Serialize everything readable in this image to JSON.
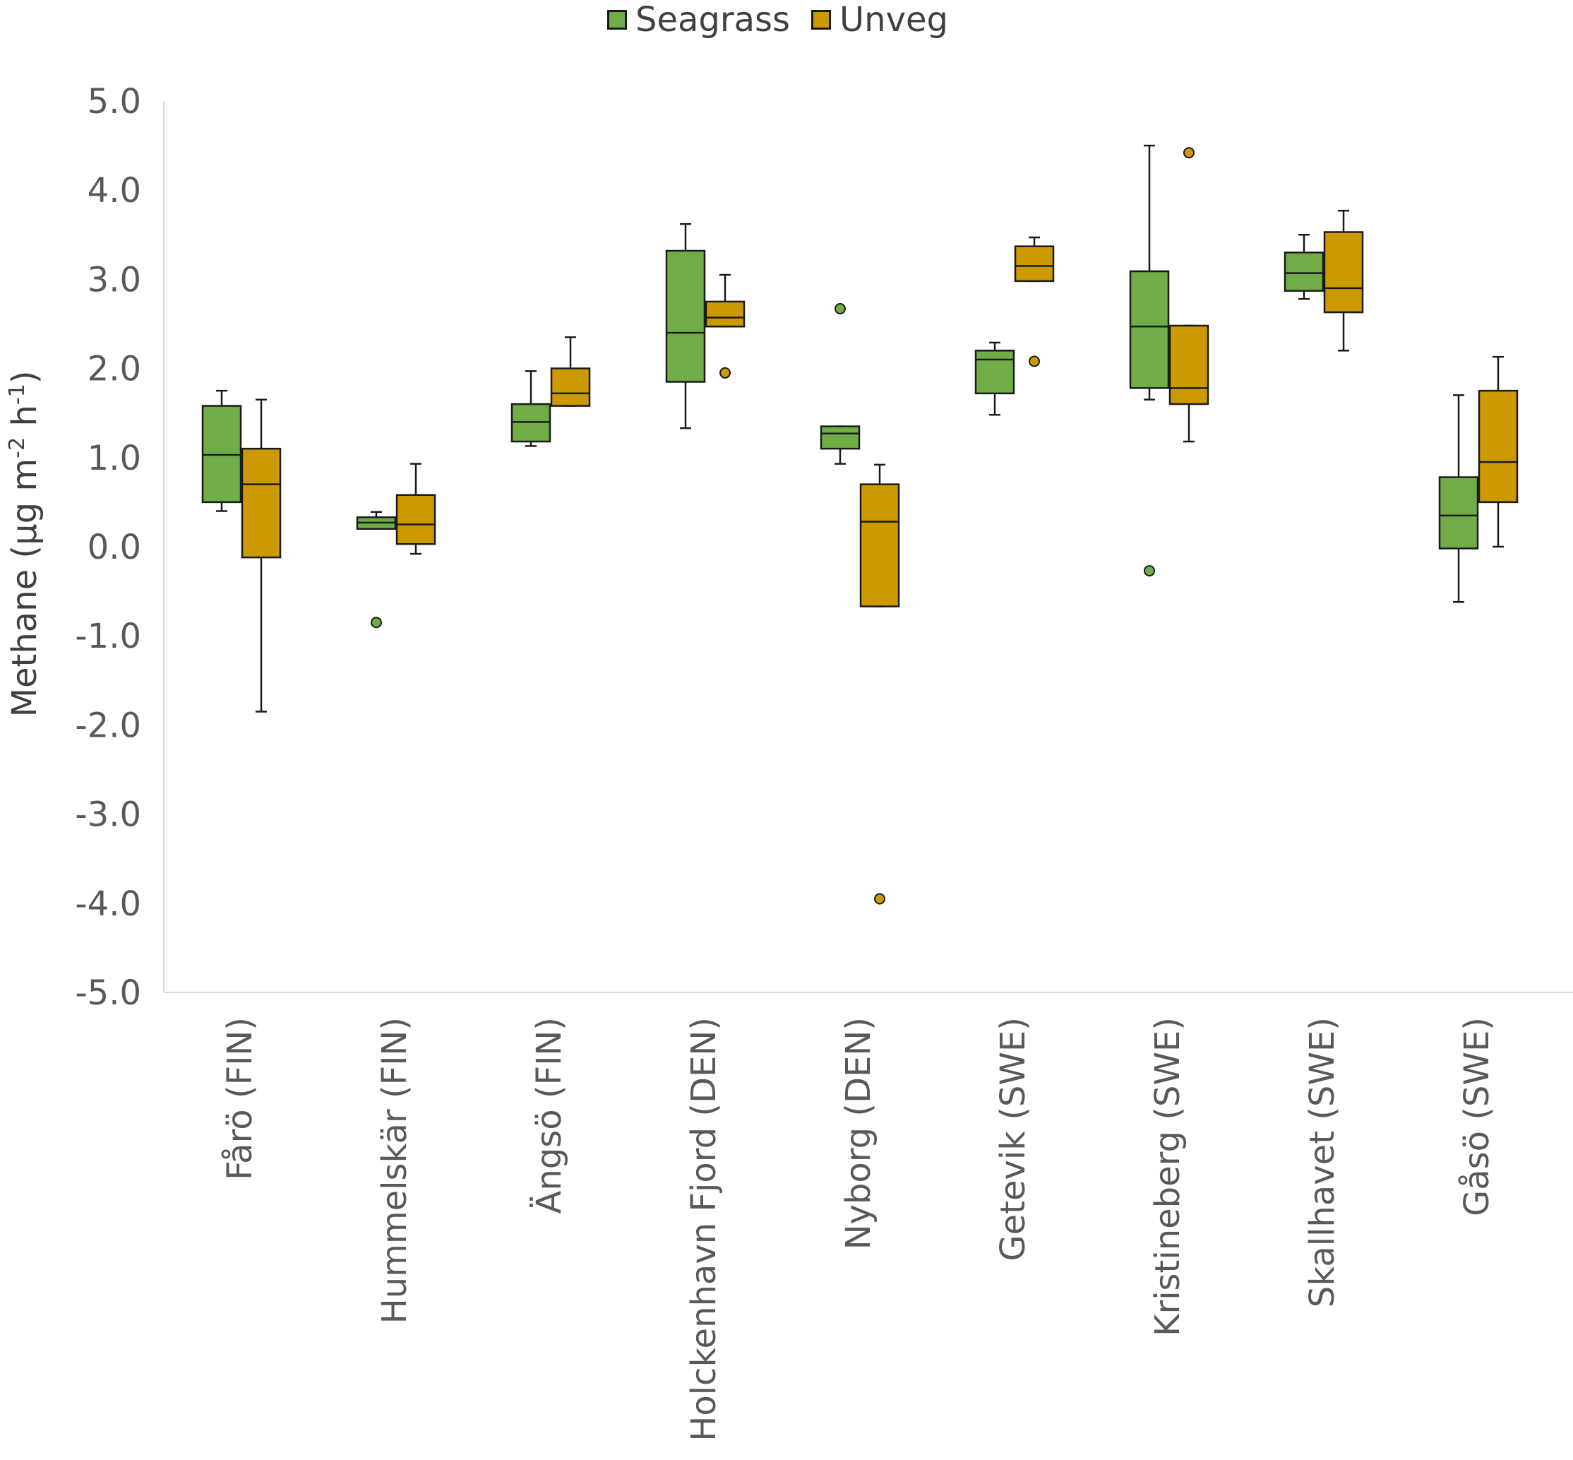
{
  "legend": [
    {
      "name": "Seagrass",
      "color": "#70ad47"
    },
    {
      "name": "Unveg",
      "color": "#cc9900"
    }
  ],
  "ylabel": {
    "main": "Methane (µg m",
    "sup1": "-2",
    "mid": " h",
    "sup2": "-1",
    "end": ")"
  },
  "chart_data": {
    "type": "boxplot",
    "title": "",
    "xlabel": "",
    "ylabel": "Methane (µg m-2 h-1)",
    "ylim": [
      -5.0,
      5.0
    ],
    "yticks": [
      5.0,
      4.0,
      3.0,
      2.0,
      1.0,
      0.0,
      -1.0,
      -2.0,
      -3.0,
      -4.0,
      -5.0
    ],
    "ytick_labels": [
      "5.0",
      "4.0",
      "3.0",
      "2.0",
      "1.0",
      "0.0",
      "-1.0",
      "-2.0",
      "-3.0",
      "-4.0",
      "-5.0"
    ],
    "categories": [
      "Fårö (FIN)",
      "Hummelskär (FIN)",
      "Ängsö (FIN)",
      "Holckenhavn Fjord (DEN)",
      "Nyborg (DEN)",
      "Getevik (SWE)",
      "Kristineberg (SWE)",
      "Skallhavet (SWE)",
      "Gåsö (SWE)"
    ],
    "series": [
      {
        "name": "Seagrass",
        "color": "#70ad47",
        "boxes": [
          {
            "min": 0.4,
            "q1": 0.5,
            "median": 1.03,
            "q3": 1.58,
            "max": 1.75,
            "outliers": []
          },
          {
            "min": 0.2,
            "q1": 0.2,
            "median": 0.27,
            "q3": 0.33,
            "max": 0.39,
            "outliers": [
              -0.85
            ]
          },
          {
            "min": 1.13,
            "q1": 1.18,
            "median": 1.4,
            "q3": 1.6,
            "max": 1.97,
            "outliers": []
          },
          {
            "min": 1.33,
            "q1": 1.85,
            "median": 2.4,
            "q3": 3.32,
            "max": 3.62,
            "outliers": []
          },
          {
            "min": 0.93,
            "q1": 1.1,
            "median": 1.27,
            "q3": 1.35,
            "max": 1.35,
            "outliers": [
              2.67
            ]
          },
          {
            "min": 1.48,
            "q1": 1.72,
            "median": 2.1,
            "q3": 2.2,
            "max": 2.29,
            "outliers": []
          },
          {
            "min": 1.65,
            "q1": 1.78,
            "median": 2.47,
            "q3": 3.09,
            "max": 4.5,
            "outliers": [
              -0.27
            ]
          },
          {
            "min": 2.78,
            "q1": 2.87,
            "median": 3.07,
            "q3": 3.3,
            "max": 3.5,
            "outliers": []
          },
          {
            "min": -0.62,
            "q1": -0.02,
            "median": 0.35,
            "q3": 0.78,
            "max": 1.7,
            "outliers": []
          }
        ]
      },
      {
        "name": "Unveg",
        "color": "#cc9900",
        "boxes": [
          {
            "min": -1.85,
            "q1": -0.12,
            "median": 0.7,
            "q3": 1.1,
            "max": 1.65,
            "outliers": []
          },
          {
            "min": -0.08,
            "q1": 0.03,
            "median": 0.25,
            "q3": 0.58,
            "max": 0.93,
            "outliers": []
          },
          {
            "min": 1.58,
            "q1": 1.58,
            "median": 1.72,
            "q3": 2.0,
            "max": 2.35,
            "outliers": []
          },
          {
            "min": 2.47,
            "q1": 2.47,
            "median": 2.57,
            "q3": 2.75,
            "max": 3.05,
            "outliers": [
              1.95
            ]
          },
          {
            "min": -0.67,
            "q1": -0.67,
            "median": 0.28,
            "q3": 0.7,
            "max": 0.92,
            "outliers": [
              -3.95
            ]
          },
          {
            "min": 2.98,
            "q1": 2.98,
            "median": 3.15,
            "q3": 3.37,
            "max": 3.47,
            "outliers": [
              2.08
            ]
          },
          {
            "min": 1.18,
            "q1": 1.6,
            "median": 1.78,
            "q3": 2.48,
            "max": 2.48,
            "outliers": [
              4.42
            ]
          },
          {
            "min": 2.2,
            "q1": 2.63,
            "median": 2.9,
            "q3": 3.53,
            "max": 3.77,
            "outliers": []
          },
          {
            "min": 0.0,
            "q1": 0.5,
            "median": 0.95,
            "q3": 1.75,
            "max": 2.13,
            "outliers": []
          }
        ]
      }
    ]
  }
}
